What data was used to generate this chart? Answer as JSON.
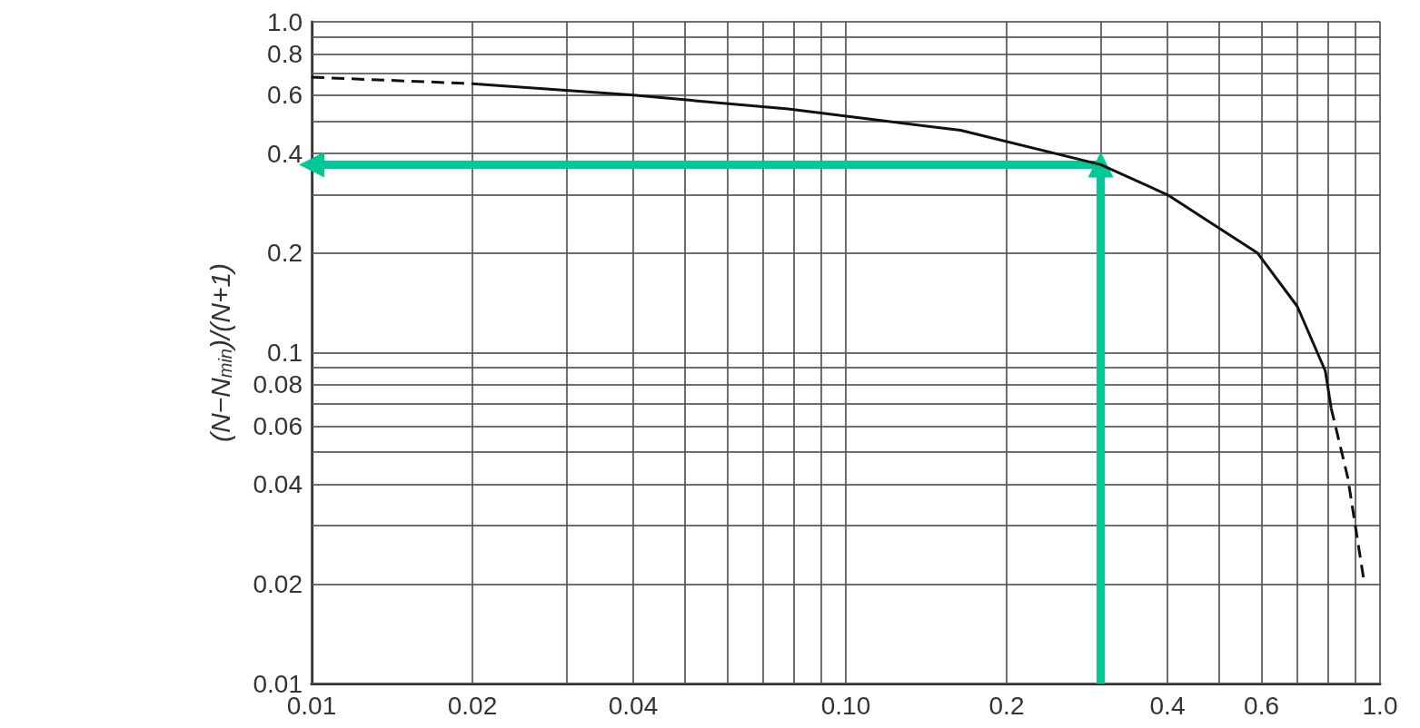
{
  "chart_data": {
    "type": "line",
    "ylabel": "(N−N$_{min}$)/(N+1)",
    "log": "xy",
    "grid": true,
    "xlim": [
      0.01,
      1.0
    ],
    "ylim": [
      0.01,
      1.0
    ],
    "xticks": [
      0.01,
      0.02,
      {
        "value": 0.03,
        "label": null
      },
      0.04,
      {
        "value": 0.05,
        "label": null
      },
      {
        "value": 0.06,
        "label": null
      },
      {
        "value": 0.07,
        "label": null
      },
      {
        "value": 0.08,
        "label": null
      },
      {
        "value": 0.09,
        "label": null
      },
      {
        "value": 0.1,
        "label": "0.10"
      },
      0.2,
      {
        "value": 0.3,
        "label": null
      },
      0.4,
      {
        "value": 0.5,
        "label": null
      },
      0.6,
      {
        "value": 0.7,
        "label": null
      },
      {
        "value": 0.8,
        "label": null
      },
      {
        "value": 0.9,
        "label": null
      },
      {
        "value": 1.0,
        "label": "1.0"
      }
    ],
    "yticks": [
      0.01,
      0.02,
      {
        "value": 0.03,
        "label": null
      },
      0.04,
      {
        "value": 0.05,
        "label": null
      },
      0.06,
      {
        "value": 0.07,
        "label": null
      },
      0.08,
      {
        "value": 0.09,
        "label": null
      },
      0.1,
      0.2,
      {
        "value": 0.3,
        "label": null
      },
      0.4,
      {
        "value": 0.5,
        "label": null
      },
      0.6,
      {
        "value": 0.7,
        "label": null
      },
      0.8,
      {
        "value": 0.9,
        "label": null
      },
      {
        "value": 1.0,
        "label": "1.0"
      }
    ],
    "series": [
      {
        "color": "#111111",
        "line_style": "dashed",
        "x": [
          0.01,
          0.02
        ],
        "values": [
          0.68,
          0.65
        ]
      },
      {
        "color": "#111111",
        "line_style": "solid",
        "x": [
          0.02,
          0.04,
          0.078,
          0.164,
          0.3,
          0.4,
          0.59,
          0.7,
          0.79,
          0.81
        ],
        "values": [
          0.65,
          0.6,
          0.545,
          0.47,
          0.37,
          0.3,
          0.2,
          0.138,
          0.088,
          0.068
        ]
      },
      {
        "color": "#111111",
        "line_style": "dashed",
        "x": [
          0.81,
          0.87,
          0.935
        ],
        "values": [
          0.068,
          0.042,
          0.02
        ]
      },
      {
        "color": "#00c896",
        "line_style": "solid",
        "marker": "triangle",
        "x": [
          0.3,
          0.3
        ],
        "values": [
          0.01,
          0.37
        ]
      },
      {
        "color": "#00c896",
        "line_style": "solid",
        "marker": "triangle",
        "x": [
          0.3,
          0.01
        ],
        "values": [
          0.37,
          0.37
        ]
      }
    ]
  }
}
